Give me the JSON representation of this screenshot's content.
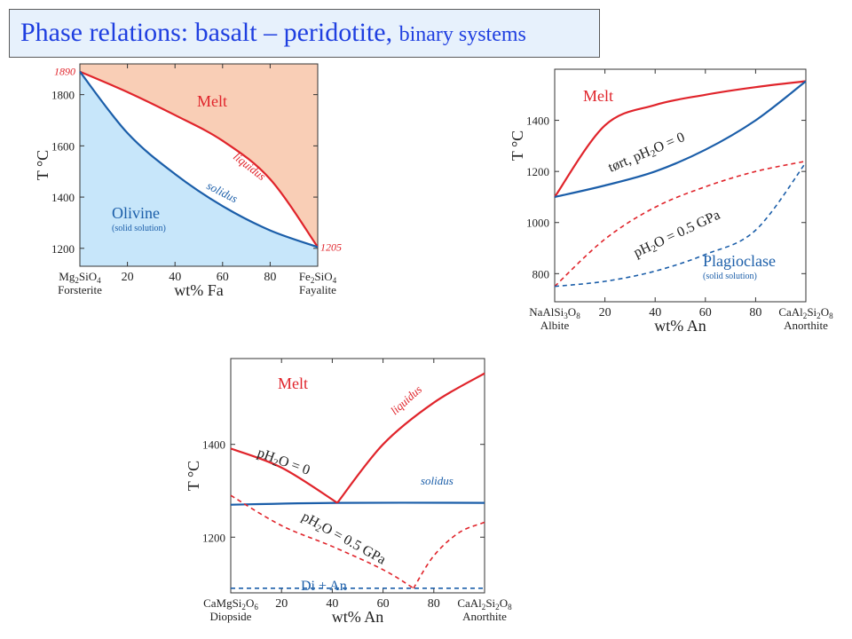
{
  "title": {
    "main": "Phase relations: basalt – peridotite,",
    "sub": "binary systems"
  },
  "colors": {
    "liquidus_red": "#e0242b",
    "solidus_blue": "#1b5ea9",
    "melt_fill": "#f9ceb6",
    "solid_fill": "#c7e6fa",
    "title_text": "#1f3fe0",
    "title_bg": "#e7f1fc"
  },
  "chart_data": [
    {
      "type": "line",
      "id": "olivine",
      "xlabel": "wt% Fa",
      "ylabel": "T °C",
      "xlim": [
        0,
        100
      ],
      "ylim": [
        1130,
        1920
      ],
      "xticks": [
        20,
        40,
        60,
        80
      ],
      "yticks": [
        1200,
        1400,
        1600,
        1800
      ],
      "x_end_labels": {
        "left_formula": "Mg₂SiO₄",
        "left_name": "Forsterite",
        "right_formula": "Fe₂SiO₄",
        "right_name": "Fayalite"
      },
      "endpoint_labels": [
        "1890",
        "1205"
      ],
      "field_labels": {
        "melt": "Melt",
        "solid": "Olivine",
        "solid_note": "(solid solution)"
      },
      "curve_labels": {
        "liquidus": "liquidus",
        "solidus": "solidus"
      },
      "series": [
        {
          "name": "liquidus",
          "x": [
            0,
            20,
            40,
            60,
            80,
            100
          ],
          "y": [
            1890,
            1810,
            1720,
            1620,
            1470,
            1205
          ]
        },
        {
          "name": "solidus",
          "x": [
            0,
            20,
            40,
            60,
            80,
            100
          ],
          "y": [
            1890,
            1650,
            1490,
            1365,
            1270,
            1205
          ]
        }
      ]
    },
    {
      "type": "line",
      "id": "plagioclase",
      "xlabel": "wt% An",
      "ylabel": "T °C",
      "xlim": [
        0,
        100
      ],
      "ylim": [
        690,
        1600
      ],
      "xticks": [
        20,
        40,
        60,
        80
      ],
      "yticks": [
        800,
        1000,
        1200,
        1400
      ],
      "x_end_labels": {
        "left_formula": "NaAlSi₃O₈",
        "left_name": "Albite",
        "right_formula": "CaAl₂Si₂O₈",
        "right_name": "Anorthite"
      },
      "field_labels": {
        "melt": "Melt",
        "solid": "Plagioclase",
        "solid_note": "(solid solution)"
      },
      "curve_labels": {
        "dry": "tørt, pH₂O = 0",
        "wet": "pH₂O = 0.5 GPa"
      },
      "series": [
        {
          "name": "liquidus dry",
          "x": [
            0,
            20,
            40,
            60,
            80,
            100
          ],
          "y": [
            1100,
            1380,
            1460,
            1500,
            1530,
            1553
          ]
        },
        {
          "name": "solidus dry",
          "x": [
            0,
            20,
            40,
            60,
            80,
            100
          ],
          "y": [
            1100,
            1145,
            1200,
            1285,
            1400,
            1553
          ]
        },
        {
          "name": "liquidus 0.5 GPa",
          "x": [
            0,
            20,
            40,
            60,
            80,
            100
          ],
          "y": [
            750,
            935,
            1060,
            1140,
            1200,
            1240
          ]
        },
        {
          "name": "solidus 0.5 GPa",
          "x": [
            0,
            20,
            40,
            60,
            80,
            100
          ],
          "y": [
            750,
            770,
            810,
            875,
            970,
            1235
          ]
        }
      ]
    },
    {
      "type": "line",
      "id": "diopside-anorthite",
      "xlabel": "wt% An",
      "ylabel": "T °C",
      "xlim": [
        0,
        100
      ],
      "ylim": [
        1080,
        1585
      ],
      "xticks": [
        20,
        40,
        60,
        80
      ],
      "yticks": [
        1200,
        1400
      ],
      "x_end_labels": {
        "left_formula": "CaMgSi₂O₆",
        "left_name": "Diopside",
        "right_formula": "CaAl₂Si₂O₈",
        "right_name": "Anorthite"
      },
      "field_labels": {
        "melt": "Melt",
        "solid": "Di + An"
      },
      "curve_labels": {
        "liquidus": "liquidus",
        "solidus": "solidus",
        "dry": "pH₂O = 0",
        "wet": "pH₂O = 0.5 GPa"
      },
      "series": [
        {
          "name": "liquidus dry (Di side)",
          "x": [
            0,
            20,
            42
          ],
          "y": [
            1391,
            1350,
            1274
          ]
        },
        {
          "name": "liquidus dry (An side)",
          "x": [
            42,
            60,
            80,
            100
          ],
          "y": [
            1274,
            1400,
            1490,
            1553
          ]
        },
        {
          "name": "solidus dry",
          "x": [
            0,
            42,
            100
          ],
          "y": [
            1270,
            1274,
            1274
          ]
        },
        {
          "name": "liquidus 0.5 GPa (Di side)",
          "x": [
            0,
            20,
            40,
            60,
            72
          ],
          "y": [
            1290,
            1225,
            1180,
            1130,
            1090
          ]
        },
        {
          "name": "liquidus 0.5 GPa (An side)",
          "x": [
            72,
            80,
            90,
            100
          ],
          "y": [
            1090,
            1160,
            1210,
            1232
          ]
        },
        {
          "name": "solidus 0.5 GPa",
          "x": [
            0,
            100
          ],
          "y": [
            1090,
            1090
          ]
        }
      ]
    }
  ]
}
